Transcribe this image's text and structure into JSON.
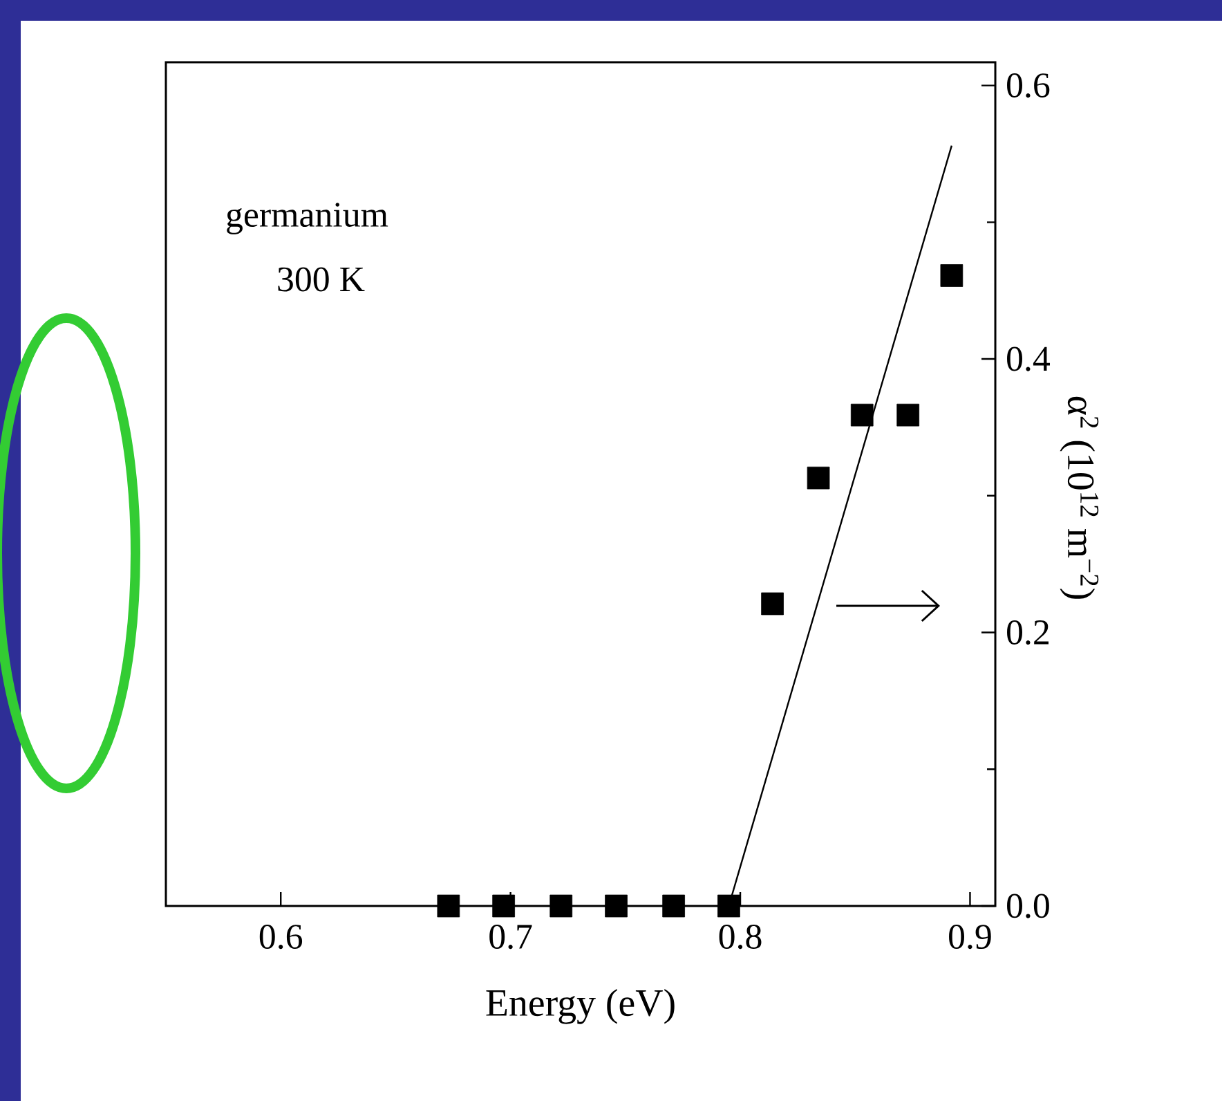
{
  "chart_data": {
    "type": "scatter",
    "xlabel": "Energy (eV)",
    "ylabel": "α$^{2}$ (10$^{12}$ m$^{−2}$)",
    "annotations": [
      "germanium",
      "300 K"
    ],
    "marker": "square",
    "series": [
      {
        "color": "#000000",
        "x": [
          0.673,
          0.697,
          0.722,
          0.746,
          0.771,
          0.795,
          0.814,
          0.834,
          0.853,
          0.873,
          0.892
        ],
        "values": [
          0,
          0,
          0,
          0,
          0,
          0,
          0.221,
          0.313,
          0.359,
          0.359,
          0.461
        ]
      },
      {
        "type": "line",
        "color": "#000000",
        "marker": "none",
        "x": [
          0.795,
          0.892
        ],
        "values": [
          0,
          0.556
        ]
      }
    ],
    "xlim": [
      0.55,
      0.911
    ],
    "ylim": [
      0,
      0.617
    ],
    "xticks": [
      0.6,
      0.7,
      0.8,
      0.9
    ],
    "yticks": [
      {
        "value": 0,
        "label": "0.0"
      },
      {
        "value": 0.2,
        "label": "0.2"
      },
      {
        "value": 0.4,
        "label": "0.4"
      },
      {
        "value": 0.6,
        "label": "0.6"
      }
    ]
  }
}
